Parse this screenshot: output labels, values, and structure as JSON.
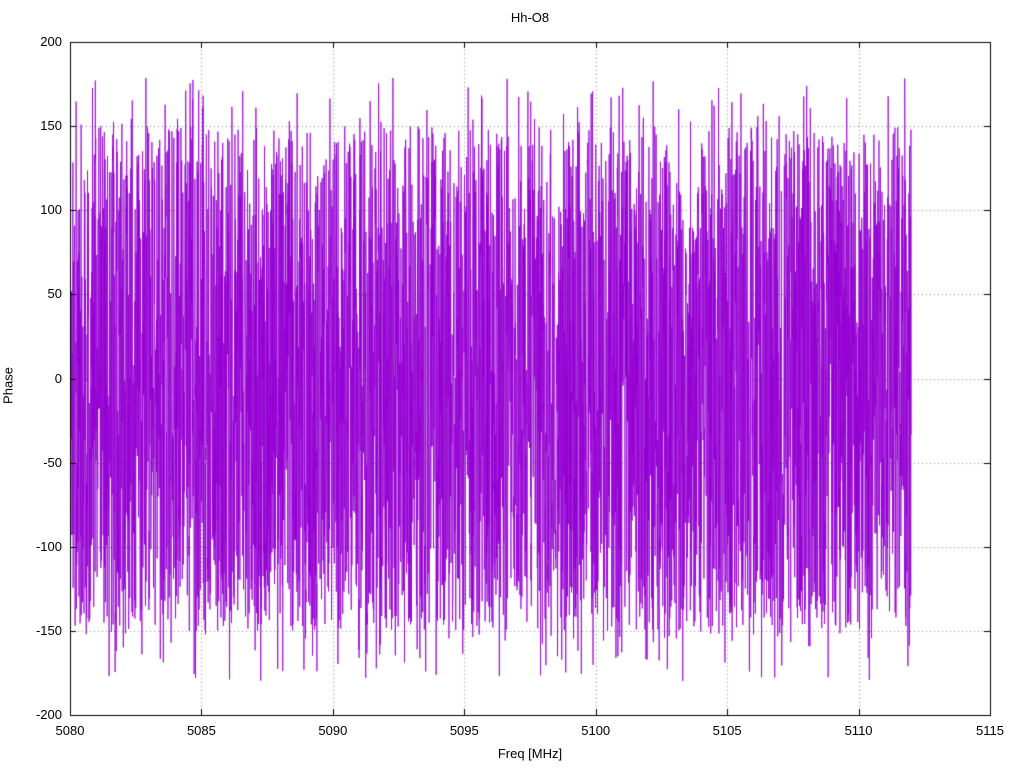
{
  "title": "Hh-O8",
  "chart_data": {
    "type": "line",
    "title": "Hh-O8",
    "xlabel": "Freq [MHz]",
    "ylabel": "Phase",
    "xlim": [
      5080,
      5115
    ],
    "ylim": [
      -200,
      200
    ],
    "x_ticks": [
      "5080",
      "5085",
      "5090",
      "5095",
      "5100",
      "5105",
      "5110",
      "5115"
    ],
    "x_tick_values": [
      5080,
      5085,
      5090,
      5095,
      5100,
      5105,
      5110,
      5115
    ],
    "y_ticks": [
      "-200",
      "-150",
      "-100",
      "-50",
      "0",
      "50",
      "100",
      "150",
      "200"
    ],
    "y_tick_values": [
      -200,
      -150,
      -100,
      -50,
      0,
      50,
      100,
      150,
      200
    ],
    "grid": true,
    "legend": "none",
    "series": [
      {
        "name": "phase",
        "color": "#9400D3",
        "x_start": 5080.05,
        "x_end": 5112.0,
        "n_points": 4200,
        "y_min": -180,
        "y_max": 180,
        "distribution": "uniform-wrapped-phase-noise",
        "seed": 1337
      }
    ]
  },
  "colors": {
    "line": "#9400D3",
    "grid": "#909090",
    "axis": "#000000",
    "background": "#FFFFFF"
  }
}
